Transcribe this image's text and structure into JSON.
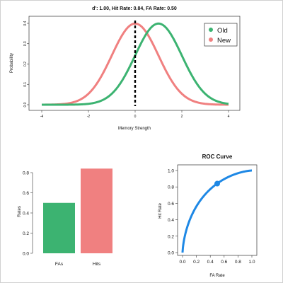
{
  "chart_data": [
    {
      "type": "line",
      "title": "d': 1.00, Hit Rate: 0.84, FA Rate: 0.50",
      "xlabel": "Memory Strength",
      "ylabel": "Probability",
      "xlim": [
        -4,
        4
      ],
      "ylim": [
        0,
        0.4
      ],
      "x_ticks": [
        "-4",
        "-2",
        "0",
        "2",
        "4"
      ],
      "y_ticks": [
        "0.0",
        "0.1",
        "0.2",
        "0.3",
        "0.4"
      ],
      "series": [
        {
          "name": "Old",
          "color": "#3cb371",
          "distribution": "normal",
          "mean": 1.0,
          "sd": 1.0
        },
        {
          "name": "New",
          "color": "#f08080",
          "distribution": "normal",
          "mean": 0.0,
          "sd": 1.0
        }
      ],
      "criterion_x": 0,
      "criterion_style": "dashed-black",
      "legend": "top-right",
      "grid": false
    },
    {
      "type": "bar",
      "categories": [
        "FAs",
        "Hits"
      ],
      "values": [
        0.5,
        0.84
      ],
      "colors": [
        "#3cb371",
        "#f08080"
      ],
      "ylabel": "Rates",
      "ylim": [
        0,
        0.8
      ],
      "y_ticks": [
        "0.0",
        "0.2",
        "0.4",
        "0.6",
        "0.8"
      ]
    },
    {
      "type": "line",
      "title": "ROC Curve",
      "xlabel": "FA Rate",
      "ylabel": "Hit Rate",
      "xlim": [
        0,
        1
      ],
      "ylim": [
        0,
        1
      ],
      "x_ticks": [
        "0.0",
        "0.2",
        "0.4",
        "0.6",
        "0.8",
        "1.0"
      ],
      "y_ticks": [
        "0.0",
        "0.2",
        "0.4",
        "0.6",
        "0.8",
        "1.0"
      ],
      "curve_dprime": 1.0,
      "line_color": "#1e88e5",
      "point": {
        "x": 0.5,
        "y": 0.84,
        "color": "#1e88e5"
      }
    }
  ]
}
